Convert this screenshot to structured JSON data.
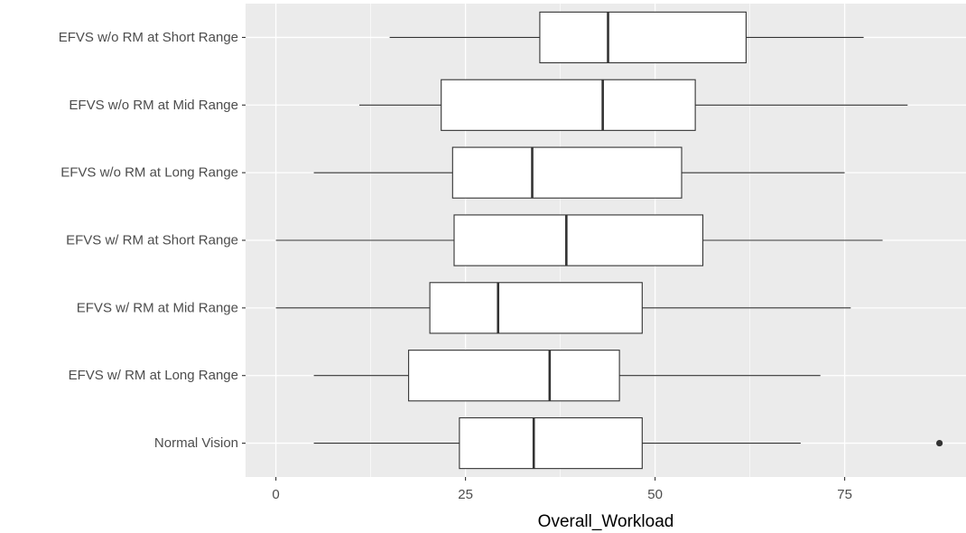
{
  "chart_data": {
    "type": "boxplot",
    "orientation": "horizontal",
    "xlabel": "Overall_Workload",
    "ylabel": "",
    "xlim": [
      -4,
      91
    ],
    "x_ticks": [
      0,
      25,
      50,
      75
    ],
    "x_tick_labels": [
      "0",
      "25",
      "50",
      "75"
    ],
    "grid": true,
    "colors": {
      "panel": "#ebebeb",
      "grid_major": "#ffffff",
      "box_fill": "#ffffff",
      "line": "#333333"
    },
    "categories": [
      "EFVS w/o RM at Short Range",
      "EFVS w/o RM at Mid Range",
      "EFVS w/o RM at Long Range",
      "EFVS w/ RM at Short Range",
      "EFVS w/ RM at Mid Range",
      "EFVS w/ RM at Long Range",
      "Normal Vision"
    ],
    "boxes": [
      {
        "min": 15,
        "q1": 34.8,
        "median": 43.8,
        "q3": 62,
        "max": 77.5,
        "outliers": []
      },
      {
        "min": 11,
        "q1": 21.8,
        "median": 43.1,
        "q3": 55.3,
        "max": 83.3,
        "outliers": []
      },
      {
        "min": 5,
        "q1": 23.3,
        "median": 33.8,
        "q3": 53.5,
        "max": 75,
        "outliers": []
      },
      {
        "min": 0,
        "q1": 23.5,
        "median": 38.3,
        "q3": 56.3,
        "max": 80,
        "outliers": []
      },
      {
        "min": 0,
        "q1": 20.3,
        "median": 29.3,
        "q3": 48.3,
        "max": 75.8,
        "outliers": []
      },
      {
        "min": 5,
        "q1": 17.5,
        "median": 36.1,
        "q3": 45.3,
        "max": 71.8,
        "outliers": []
      },
      {
        "min": 5,
        "q1": 24.2,
        "median": 34,
        "q3": 48.3,
        "max": 69.2,
        "outliers": [
          87.5
        ]
      }
    ]
  }
}
